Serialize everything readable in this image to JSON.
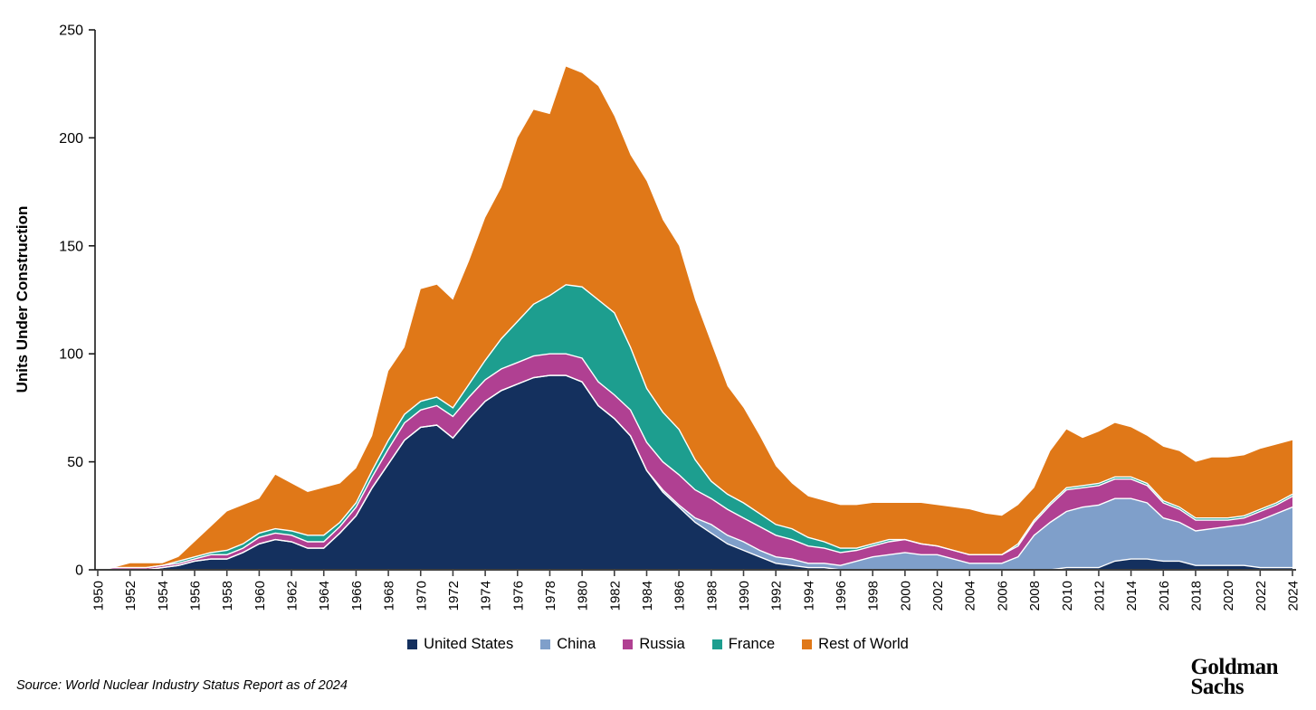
{
  "chart_data": {
    "type": "area",
    "stacked": true,
    "title": "",
    "ylabel": "Units Under Construction",
    "xlabel": "",
    "ylim": [
      0,
      250
    ],
    "yticks": [
      0,
      50,
      100,
      150,
      200,
      250
    ],
    "xticks": [
      1950,
      1952,
      1954,
      1956,
      1958,
      1960,
      1962,
      1964,
      1966,
      1968,
      1970,
      1972,
      1974,
      1976,
      1978,
      1980,
      1982,
      1984,
      1986,
      1988,
      1990,
      1992,
      1994,
      1996,
      1998,
      2000,
      2002,
      2004,
      2006,
      2008,
      2010,
      2012,
      2014,
      2016,
      2018,
      2020,
      2022,
      2024
    ],
    "grid": false,
    "legend_position": "bottom",
    "years": [
      1950,
      1951,
      1952,
      1953,
      1954,
      1955,
      1956,
      1957,
      1958,
      1959,
      1960,
      1961,
      1962,
      1963,
      1964,
      1965,
      1966,
      1967,
      1968,
      1969,
      1970,
      1971,
      1972,
      1973,
      1974,
      1975,
      1976,
      1977,
      1978,
      1979,
      1980,
      1981,
      1982,
      1983,
      1984,
      1985,
      1986,
      1987,
      1988,
      1989,
      1990,
      1991,
      1992,
      1993,
      1994,
      1995,
      1996,
      1997,
      1998,
      1999,
      2000,
      2001,
      2002,
      2003,
      2004,
      2005,
      2006,
      2007,
      2008,
      2009,
      2010,
      2011,
      2012,
      2013,
      2014,
      2015,
      2016,
      2017,
      2018,
      2019,
      2020,
      2021,
      2022,
      2023,
      2024
    ],
    "series": [
      {
        "name": "United States",
        "color": "#14305e",
        "values": [
          0,
          0,
          0,
          0,
          1,
          2,
          4,
          5,
          5,
          8,
          12,
          14,
          13,
          10,
          10,
          17,
          25,
          38,
          49,
          60,
          66,
          67,
          61,
          70,
          78,
          83,
          86,
          89,
          90,
          90,
          87,
          76,
          70,
          62,
          46,
          36,
          29,
          22,
          17,
          12,
          9,
          6,
          3,
          2,
          1,
          1,
          0,
          0,
          0,
          0,
          0,
          0,
          0,
          0,
          0,
          0,
          0,
          0,
          0,
          0,
          1,
          1,
          1,
          4,
          5,
          5,
          4,
          4,
          2,
          2,
          2,
          2,
          1,
          1,
          1
        ]
      },
      {
        "name": "China",
        "color": "#7f9fca",
        "values": [
          0,
          0,
          0,
          0,
          0,
          0,
          0,
          0,
          0,
          0,
          0,
          0,
          0,
          0,
          0,
          0,
          0,
          0,
          0,
          0,
          0,
          0,
          0,
          0,
          0,
          0,
          0,
          0,
          0,
          0,
          0,
          0,
          0,
          0,
          0,
          1,
          1,
          2,
          4,
          4,
          4,
          3,
          3,
          3,
          2,
          2,
          2,
          4,
          6,
          7,
          8,
          7,
          7,
          5,
          3,
          3,
          3,
          6,
          16,
          22,
          26,
          28,
          29,
          29,
          28,
          26,
          20,
          18,
          16,
          17,
          18,
          19,
          22,
          25,
          28
        ]
      },
      {
        "name": "Russia",
        "color": "#b04092",
        "values": [
          0,
          1,
          1,
          1,
          1,
          1,
          1,
          2,
          2,
          2,
          3,
          3,
          3,
          3,
          3,
          3,
          4,
          5,
          7,
          8,
          8,
          9,
          10,
          10,
          10,
          10,
          10,
          10,
          10,
          10,
          11,
          11,
          11,
          12,
          13,
          13,
          14,
          13,
          12,
          12,
          11,
          11,
          10,
          9,
          8,
          7,
          6,
          5,
          5,
          6,
          6,
          5,
          4,
          4,
          4,
          4,
          4,
          5,
          6,
          8,
          10,
          9,
          9,
          9,
          9,
          8,
          7,
          6,
          5,
          4,
          3,
          3,
          4,
          4,
          5
        ]
      },
      {
        "name": "France",
        "color": "#1d9e8f",
        "values": [
          0,
          0,
          0,
          0,
          0,
          1,
          1,
          1,
          2,
          2,
          2,
          2,
          2,
          3,
          3,
          2,
          2,
          3,
          4,
          4,
          4,
          4,
          4,
          6,
          9,
          14,
          19,
          24,
          27,
          32,
          33,
          38,
          38,
          29,
          25,
          23,
          21,
          14,
          8,
          7,
          7,
          6,
          5,
          5,
          4,
          3,
          2,
          1,
          1,
          1,
          0,
          0,
          0,
          0,
          0,
          0,
          0,
          1,
          1,
          1,
          1,
          1,
          1,
          1,
          1,
          1,
          1,
          1,
          1,
          1,
          1,
          1,
          1,
          1,
          1
        ]
      },
      {
        "name": "Rest of World",
        "color": "#e07818",
        "values": [
          0,
          0,
          2,
          2,
          1,
          2,
          7,
          12,
          18,
          18,
          16,
          25,
          22,
          20,
          22,
          18,
          16,
          16,
          32,
          31,
          52,
          52,
          50,
          57,
          66,
          70,
          85,
          90,
          84,
          101,
          99,
          99,
          91,
          89,
          96,
          89,
          85,
          74,
          64,
          50,
          44,
          36,
          27,
          21,
          19,
          19,
          20,
          20,
          19,
          17,
          17,
          19,
          19,
          20,
          21,
          19,
          18,
          18,
          15,
          24,
          27,
          22,
          24,
          25,
          23,
          22,
          25,
          26,
          26,
          28,
          28,
          28,
          28,
          27,
          25
        ]
      }
    ],
    "boundary_line_color": "#ffffff",
    "axis_color": "#404040"
  },
  "legend": {
    "items": [
      {
        "label": "United States",
        "color": "#14305e"
      },
      {
        "label": "China",
        "color": "#7f9fca"
      },
      {
        "label": "Russia",
        "color": "#b04092"
      },
      {
        "label": "France",
        "color": "#1d9e8f"
      },
      {
        "label": "Rest of World",
        "color": "#e07818"
      }
    ]
  },
  "source": {
    "text": "Source: World Nuclear Industry Status Report as of 2024"
  },
  "logo": {
    "line1": "Goldman",
    "line2": "Sachs"
  }
}
